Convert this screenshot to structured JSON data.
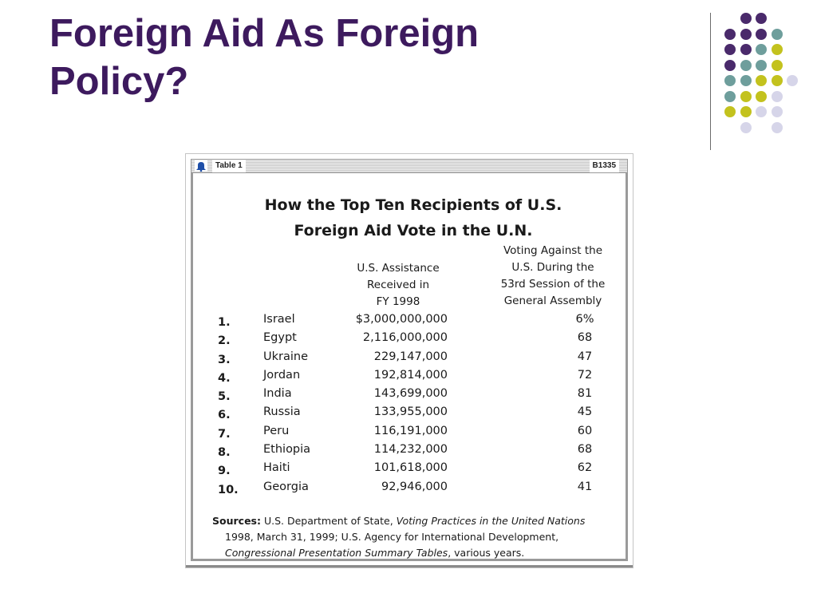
{
  "slide": {
    "title_line1": "Foreign Aid As Foreign",
    "title_line2": "Policy?"
  },
  "decor": {
    "colors": {
      "purple": "#4a2a6b",
      "teal": "#6e9e9c",
      "yellow": "#c3c21e",
      "lavender": "#d6d5e9"
    }
  },
  "figure": {
    "frame_label": "Table 1",
    "frame_code": "B1335",
    "icon": "bell-icon",
    "title_line1": "How the Top Ten Recipients of U.S.",
    "title_line2": "Foreign Aid Vote in the U.N.",
    "col_assistance": "U.S. Assistance\nReceived in\nFY 1998",
    "col_voting": "Voting Against the\nU.S. During the\n53rd Session of the\nGeneral Assembly",
    "rows": [
      {
        "rank": "1.",
        "country": "Israel",
        "amount": "$3,000,000,000",
        "pct": "6%"
      },
      {
        "rank": "2.",
        "country": "Egypt",
        "amount": "2,116,000,000",
        "pct": "68"
      },
      {
        "rank": "3.",
        "country": "Ukraine",
        "amount": "229,147,000",
        "pct": "47"
      },
      {
        "rank": "4.",
        "country": "Jordan",
        "amount": "192,814,000",
        "pct": "72"
      },
      {
        "rank": "5.",
        "country": "India",
        "amount": "143,699,000",
        "pct": "81"
      },
      {
        "rank": "6.",
        "country": "Russia",
        "amount": "133,955,000",
        "pct": "45"
      },
      {
        "rank": "7.",
        "country": "Peru",
        "amount": "116,191,000",
        "pct": "60"
      },
      {
        "rank": "8.",
        "country": "Ethiopia",
        "amount": "114,232,000",
        "pct": "68"
      },
      {
        "rank": "9.",
        "country": "Haiti",
        "amount": "101,618,000",
        "pct": "62"
      },
      {
        "rank": "10.",
        "country": "Georgia",
        "amount": "92,946,000",
        "pct": "41"
      }
    ],
    "sources_label": "Sources:",
    "sources_text1": "U.S. Department of State,",
    "sources_italic1": "Voting Practices in the United Nations",
    "sources_text2": "1998, March 31, 1999; U.S. Agency for International Development,",
    "sources_italic2": "Congressional Presentation Summary Tables",
    "sources_text3": ", various years."
  }
}
